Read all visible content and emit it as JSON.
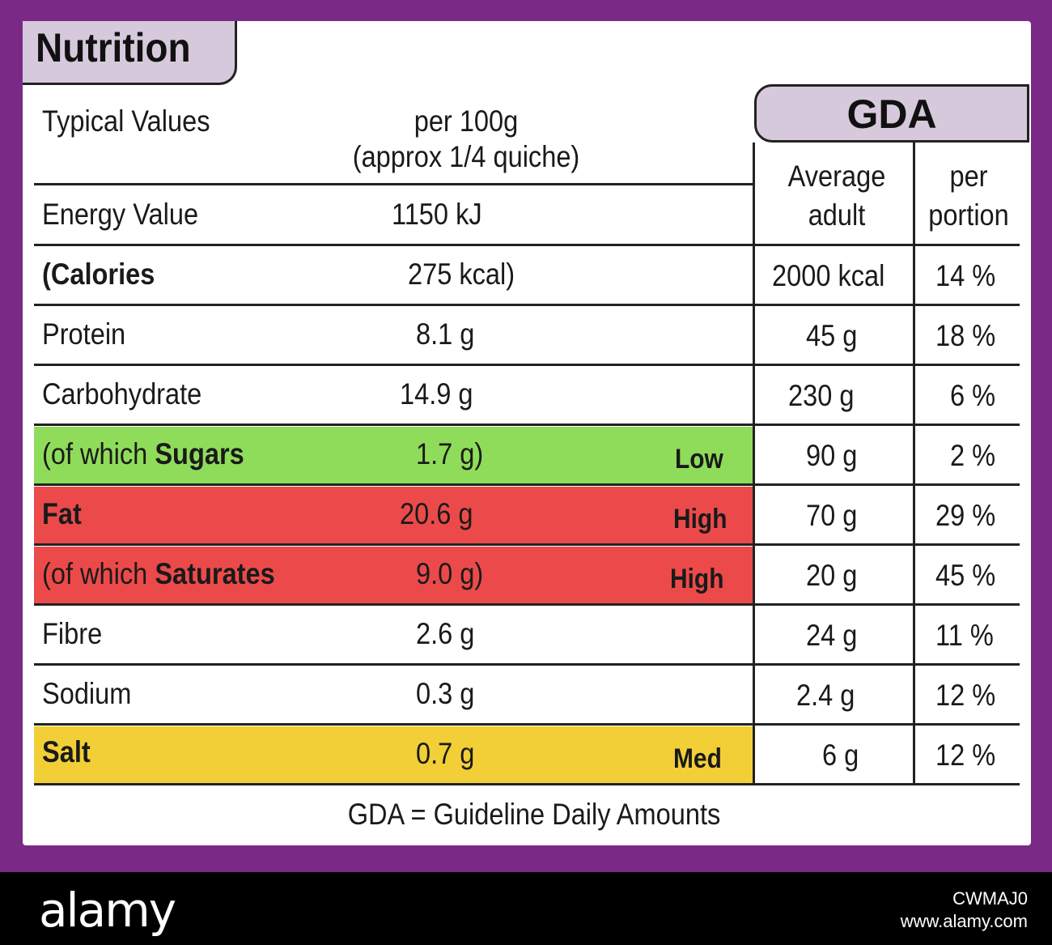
{
  "label": {
    "title": "Nutrition",
    "header": {
      "typical_values": "Typical Values",
      "per100g_line1": "per 100g",
      "per100g_line2": "(approx 1/4 quiche)",
      "gda": "GDA",
      "average_line1": "Average",
      "average_line2": "adult",
      "portion_line1": "per",
      "portion_line2": "portion"
    },
    "rows": [
      {
        "name": "Energy Value",
        "value": "1150 kJ",
        "rating": "",
        "gda_adult": "",
        "gda_portion": ""
      },
      {
        "name": "(Calories",
        "value": "275 kcal)",
        "rating": "",
        "gda_adult": "2000 kcal",
        "gda_portion": "14 %"
      },
      {
        "name": "Protein",
        "value": "8.1 g",
        "rating": "",
        "gda_adult": "45 g",
        "gda_portion": "18 %"
      },
      {
        "name": "Carbohydrate",
        "value": "14.9 g",
        "rating": "",
        "gda_adult": "230 g",
        "gda_portion": "6 %"
      },
      {
        "name_prefix": "(of which ",
        "name_bold": "Sugars",
        "value": "1.7 g)",
        "rating": "Low",
        "gda_adult": "90 g",
        "gda_portion": "2 %"
      },
      {
        "name": "Fat",
        "value": "20.6 g",
        "rating": "High",
        "gda_adult": "70 g",
        "gda_portion": "29 %"
      },
      {
        "name_prefix": "(of which ",
        "name_bold": "Saturates",
        "value": "9.0 g)",
        "rating": "High",
        "gda_adult": "20 g",
        "gda_portion": "45 %"
      },
      {
        "name": "Fibre",
        "value": "2.6 g",
        "rating": "",
        "gda_adult": "24 g",
        "gda_portion": "11 %"
      },
      {
        "name": "Sodium",
        "value": "0.3 g",
        "rating": "",
        "gda_adult": "2.4 g",
        "gda_portion": "12 %"
      },
      {
        "name": "Salt",
        "value": "0.7 g",
        "rating": "Med",
        "gda_adult": "6 g",
        "gda_portion": "12 %"
      }
    ],
    "footnote": "GDA = Guideline Daily Amounts"
  },
  "colors": {
    "frame": "#7a2a86",
    "tab": "#d7c9dc",
    "low": "#8fdc5a",
    "high": "#ec4a4a",
    "med": "#f2cf37"
  },
  "watermark": {
    "logo": "alamy",
    "image_id": "CWMAJ0",
    "site": "www.alamy.com"
  }
}
